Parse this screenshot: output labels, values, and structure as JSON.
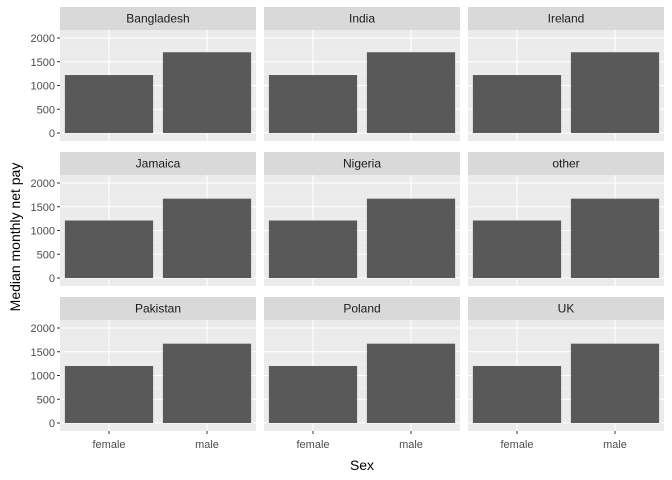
{
  "chart_data": {
    "type": "bar",
    "facet_layout": "3x3 grid",
    "xlabel": "Sex",
    "ylabel": "Median monthly net pay",
    "categories": [
      "female",
      "male"
    ],
    "ylim": [
      0,
      2000
    ],
    "y_ticks": [
      0,
      500,
      1000,
      1500,
      2000
    ],
    "grid": true,
    "bar_color": "#595959",
    "panel_background": "#ebebeb",
    "strip_background": "#d9d9d9",
    "facets": [
      {
        "name": "Bangladesh",
        "values": [
          1220,
          1700
        ]
      },
      {
        "name": "India",
        "values": [
          1220,
          1700
        ]
      },
      {
        "name": "Ireland",
        "values": [
          1220,
          1700
        ]
      },
      {
        "name": "Jamaica",
        "values": [
          1210,
          1670
        ]
      },
      {
        "name": "Nigeria",
        "values": [
          1210,
          1670
        ]
      },
      {
        "name": "other",
        "values": [
          1210,
          1670
        ]
      },
      {
        "name": "Pakistan",
        "values": [
          1200,
          1670
        ]
      },
      {
        "name": "Poland",
        "values": [
          1200,
          1670
        ]
      },
      {
        "name": "UK",
        "values": [
          1200,
          1670
        ]
      }
    ]
  }
}
